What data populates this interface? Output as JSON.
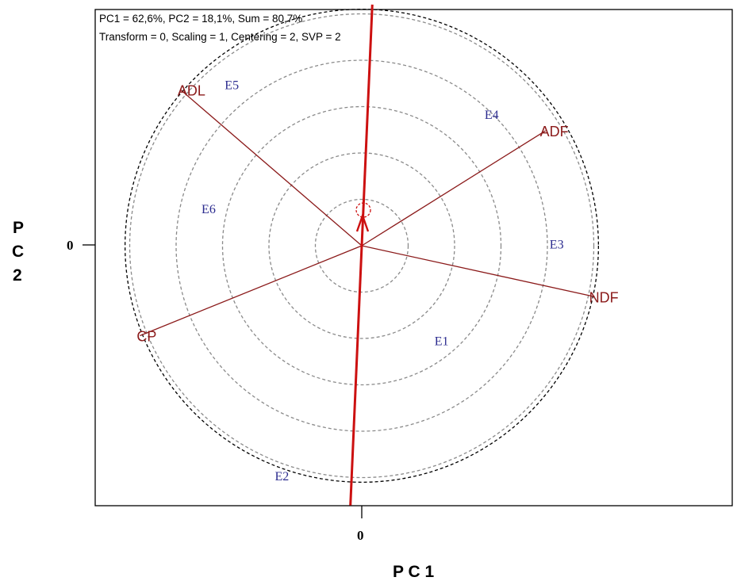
{
  "info": {
    "line1": "PC1 = 62,6%, PC2 = 18,1%, Sum = 80,7%",
    "line2": "Transform = 0, Scaling = 1, Centering = 2, SVP = 2"
  },
  "axes": {
    "xlabel": "P C 1",
    "ylabel_letters": [
      "P",
      "C",
      "2"
    ],
    "x_zero_tick": "0",
    "y_zero_tick": "0"
  },
  "colors": {
    "trait_vector": "#8b1a1a",
    "env_label": "#2b2b8f",
    "average_axis": "#cc1010",
    "rings": "#8a8a8a"
  },
  "chart_data": {
    "type": "scatter",
    "description": "GGE biplot - vector view (discriminativeness vs representativeness)",
    "origin": [
      0,
      0
    ],
    "ring_radii": [
      0.5,
      1.0,
      1.5,
      2.0,
      2.5
    ],
    "outer_circle_radius": 2.55,
    "vectors": [
      {
        "name": "ADL",
        "x": -1.95,
        "y": 1.68
      },
      {
        "name": "ADF",
        "x": 1.98,
        "y": 1.24
      },
      {
        "name": "NDF",
        "x": 2.51,
        "y": -0.55
      },
      {
        "name": "CP",
        "x": -2.39,
        "y": -0.97
      }
    ],
    "points": [
      {
        "name": "E5",
        "x": -1.4,
        "y": 1.72
      },
      {
        "name": "E4",
        "x": 1.4,
        "y": 1.4
      },
      {
        "name": "E6",
        "x": -1.65,
        "y": 0.38
      },
      {
        "name": "E3",
        "x": 2.1,
        "y": 0.0
      },
      {
        "name": "E1",
        "x": 0.86,
        "y": -1.04
      },
      {
        "name": "E2",
        "x": -0.86,
        "y": -2.5
      }
    ],
    "average_axis": {
      "slope_angle_deg": 87.5,
      "from_y": -2.8,
      "to_y": 2.6
    },
    "xlim": [
      -2.87,
      4.04
    ],
    "ylim": [
      -2.8,
      2.5
    ]
  }
}
